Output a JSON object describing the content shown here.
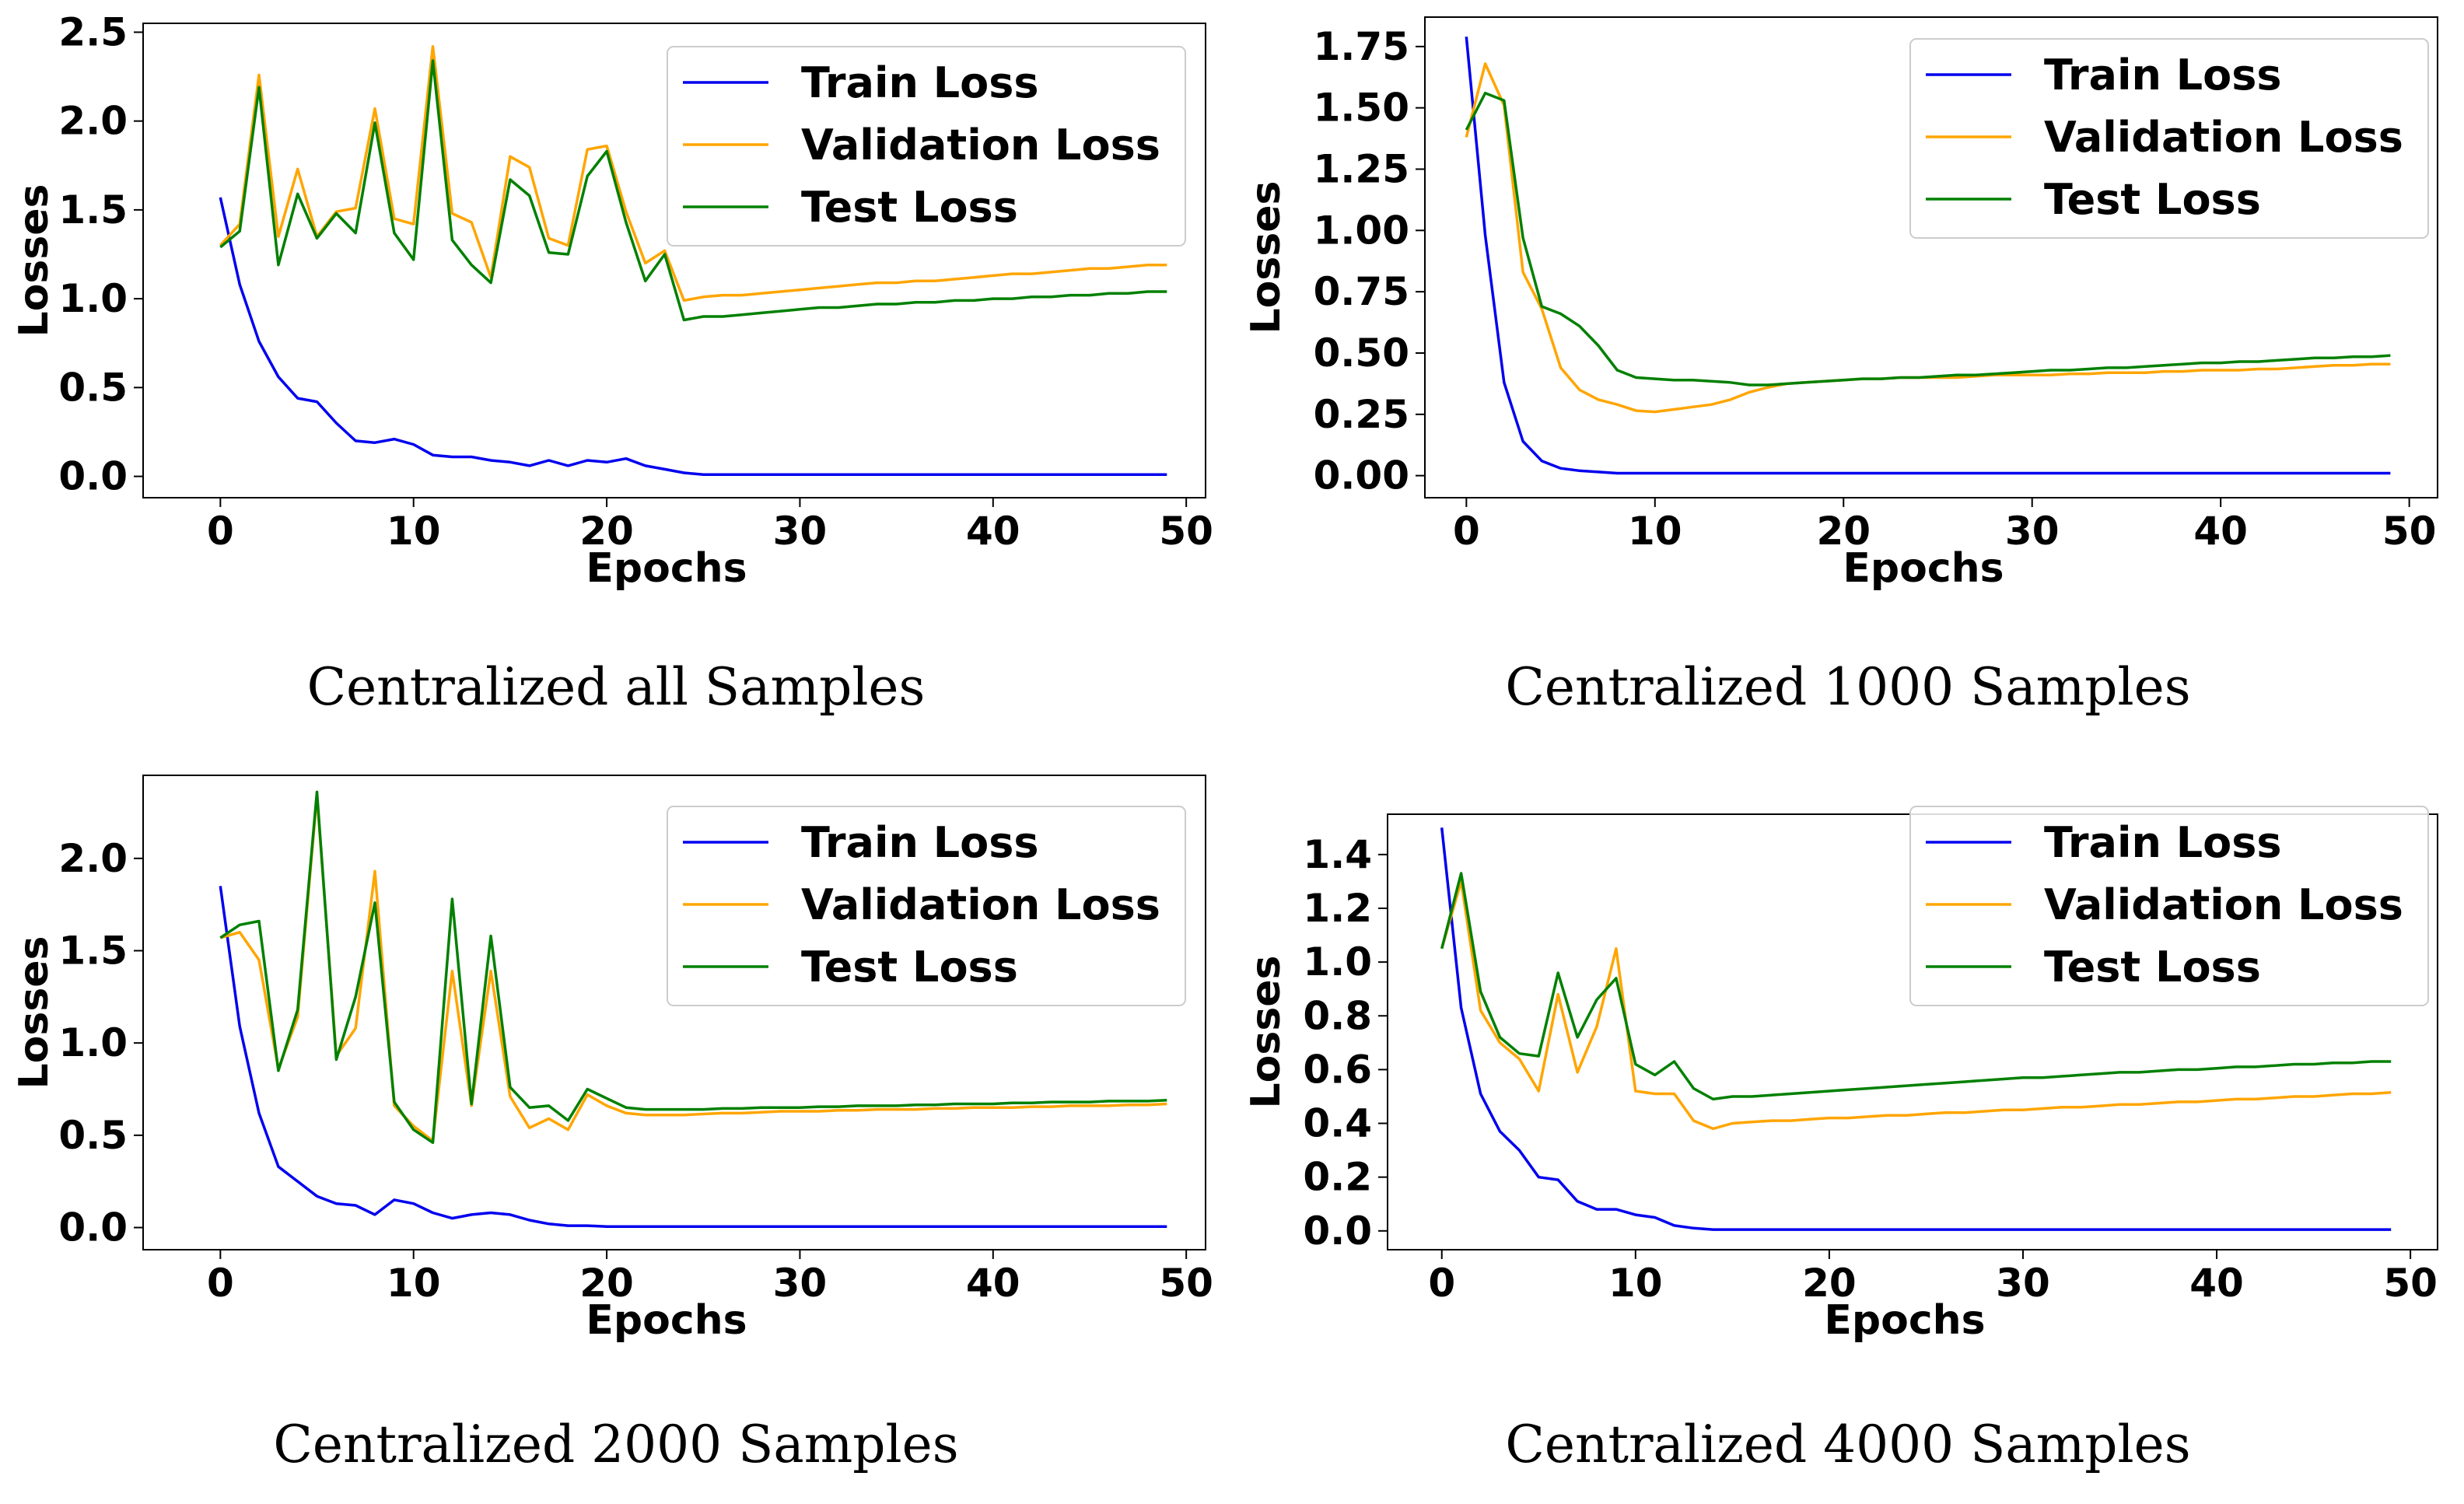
{
  "chart_data": [
    {
      "type": "line",
      "caption": "Centralized all Samples",
      "xlabel": "Epochs",
      "ylabel": "Losses",
      "xlim": [
        -4,
        51
      ],
      "ylim": [
        -0.12,
        2.55
      ],
      "xticks": [
        0,
        10,
        20,
        30,
        40,
        50
      ],
      "yticks": [
        0.0,
        0.5,
        1.0,
        1.5,
        2.0,
        2.5
      ],
      "ytick_labels": [
        "0.0",
        "0.5",
        "1.0",
        "1.5",
        "2.0",
        "2.5"
      ],
      "legend_position": "top-right",
      "x": [
        0,
        1,
        2,
        3,
        4,
        5,
        6,
        7,
        8,
        9,
        10,
        11,
        12,
        13,
        14,
        15,
        16,
        17,
        18,
        19,
        20,
        21,
        22,
        23,
        24,
        25,
        26,
        27,
        28,
        29,
        30,
        31,
        32,
        33,
        34,
        35,
        36,
        37,
        38,
        39,
        40,
        41,
        42,
        43,
        44,
        45,
        46,
        47,
        48,
        49
      ],
      "series": [
        {
          "name": "Train Loss",
          "color": "#0000ee",
          "values": [
            1.57,
            1.08,
            0.76,
            0.56,
            0.44,
            0.42,
            0.3,
            0.2,
            0.19,
            0.21,
            0.18,
            0.12,
            0.11,
            0.11,
            0.09,
            0.08,
            0.06,
            0.09,
            0.06,
            0.09,
            0.08,
            0.1,
            0.06,
            0.04,
            0.02,
            0.01,
            0.01,
            0.01,
            0.01,
            0.01,
            0.01,
            0.01,
            0.01,
            0.01,
            0.01,
            0.01,
            0.01,
            0.01,
            0.01,
            0.01,
            0.01,
            0.01,
            0.01,
            0.01,
            0.01,
            0.01,
            0.01,
            0.01,
            0.01,
            0.01
          ]
        },
        {
          "name": "Validation Loss",
          "color": "#ffa500",
          "values": [
            1.3,
            1.42,
            2.26,
            1.35,
            1.73,
            1.35,
            1.49,
            1.51,
            2.07,
            1.45,
            1.42,
            2.42,
            1.48,
            1.43,
            1.12,
            1.8,
            1.74,
            1.34,
            1.3,
            1.84,
            1.86,
            1.49,
            1.2,
            1.27,
            0.99,
            1.01,
            1.02,
            1.02,
            1.03,
            1.04,
            1.05,
            1.06,
            1.07,
            1.08,
            1.09,
            1.09,
            1.1,
            1.1,
            1.11,
            1.12,
            1.13,
            1.14,
            1.14,
            1.15,
            1.16,
            1.17,
            1.17,
            1.18,
            1.19,
            1.19
          ]
        },
        {
          "name": "Test Loss",
          "color": "#008000",
          "values": [
            1.29,
            1.38,
            2.19,
            1.19,
            1.59,
            1.34,
            1.48,
            1.37,
            1.99,
            1.37,
            1.22,
            2.34,
            1.33,
            1.19,
            1.09,
            1.67,
            1.58,
            1.26,
            1.25,
            1.69,
            1.83,
            1.43,
            1.1,
            1.25,
            0.88,
            0.9,
            0.9,
            0.91,
            0.92,
            0.93,
            0.94,
            0.95,
            0.95,
            0.96,
            0.97,
            0.97,
            0.98,
            0.98,
            0.99,
            0.99,
            1.0,
            1.0,
            1.01,
            1.01,
            1.02,
            1.02,
            1.03,
            1.03,
            1.04,
            1.04
          ]
        }
      ]
    },
    {
      "type": "line",
      "caption": "Centralized 1000 Samples",
      "xlabel": "Epochs",
      "ylabel": "Losses",
      "xlim": [
        -2.2,
        51.5
      ],
      "ylim": [
        -0.09,
        1.87
      ],
      "xticks": [
        0,
        10,
        20,
        30,
        40,
        50
      ],
      "yticks": [
        0.0,
        0.25,
        0.5,
        0.75,
        1.0,
        1.25,
        1.5,
        1.75
      ],
      "ytick_labels": [
        "0.00",
        "0.25",
        "0.50",
        "0.75",
        "1.00",
        "1.25",
        "1.50",
        "1.75"
      ],
      "legend_position": "top-right",
      "x": [
        0,
        1,
        2,
        3,
        4,
        5,
        6,
        7,
        8,
        9,
        10,
        11,
        12,
        13,
        14,
        15,
        16,
        17,
        18,
        19,
        20,
        21,
        22,
        23,
        24,
        25,
        26,
        27,
        28,
        29,
        30,
        31,
        32,
        33,
        34,
        35,
        36,
        37,
        38,
        39,
        40,
        41,
        42,
        43,
        44,
        45,
        46,
        47,
        48,
        49
      ],
      "series": [
        {
          "name": "Train Loss",
          "color": "#0000ee",
          "values": [
            1.79,
            0.98,
            0.38,
            0.14,
            0.06,
            0.03,
            0.02,
            0.015,
            0.01,
            0.01,
            0.01,
            0.01,
            0.01,
            0.01,
            0.01,
            0.01,
            0.01,
            0.01,
            0.01,
            0.01,
            0.01,
            0.01,
            0.01,
            0.01,
            0.01,
            0.01,
            0.01,
            0.01,
            0.01,
            0.01,
            0.01,
            0.01,
            0.01,
            0.01,
            0.01,
            0.01,
            0.01,
            0.01,
            0.01,
            0.01,
            0.01,
            0.01,
            0.01,
            0.01,
            0.01,
            0.01,
            0.01,
            0.01,
            0.01,
            0.01
          ]
        },
        {
          "name": "Validation Loss",
          "color": "#ffa500",
          "values": [
            1.38,
            1.68,
            1.51,
            0.83,
            0.68,
            0.44,
            0.35,
            0.31,
            0.29,
            0.265,
            0.26,
            0.27,
            0.28,
            0.29,
            0.31,
            0.34,
            0.36,
            0.375,
            0.38,
            0.385,
            0.39,
            0.395,
            0.395,
            0.4,
            0.4,
            0.4,
            0.4,
            0.405,
            0.41,
            0.41,
            0.41,
            0.41,
            0.415,
            0.415,
            0.42,
            0.42,
            0.42,
            0.425,
            0.425,
            0.43,
            0.43,
            0.43,
            0.435,
            0.435,
            0.44,
            0.445,
            0.45,
            0.45,
            0.455,
            0.455
          ]
        },
        {
          "name": "Test Loss",
          "color": "#008000",
          "values": [
            1.41,
            1.56,
            1.53,
            0.97,
            0.69,
            0.66,
            0.61,
            0.53,
            0.43,
            0.4,
            0.395,
            0.39,
            0.39,
            0.385,
            0.38,
            0.37,
            0.37,
            0.375,
            0.38,
            0.385,
            0.39,
            0.395,
            0.395,
            0.4,
            0.4,
            0.405,
            0.41,
            0.41,
            0.415,
            0.42,
            0.425,
            0.43,
            0.43,
            0.435,
            0.44,
            0.44,
            0.445,
            0.45,
            0.455,
            0.46,
            0.46,
            0.465,
            0.465,
            0.47,
            0.475,
            0.48,
            0.48,
            0.485,
            0.485,
            0.49
          ]
        }
      ]
    },
    {
      "type": "line",
      "caption": "Centralized 2000 Samples",
      "xlabel": "Epochs",
      "ylabel": "Losses",
      "xlim": [
        -4,
        51
      ],
      "ylim": [
        -0.12,
        2.45
      ],
      "xticks": [
        0,
        10,
        20,
        30,
        40,
        50
      ],
      "yticks": [
        0.0,
        0.5,
        1.0,
        1.5,
        2.0
      ],
      "ytick_labels": [
        "0.0",
        "0.5",
        "1.0",
        "1.5",
        "2.0"
      ],
      "legend_position": "top-right",
      "x": [
        0,
        1,
        2,
        3,
        4,
        5,
        6,
        7,
        8,
        9,
        10,
        11,
        12,
        13,
        14,
        15,
        16,
        17,
        18,
        19,
        20,
        21,
        22,
        23,
        24,
        25,
        26,
        27,
        28,
        29,
        30,
        31,
        32,
        33,
        34,
        35,
        36,
        37,
        38,
        39,
        40,
        41,
        42,
        43,
        44,
        45,
        46,
        47,
        48,
        49
      ],
      "series": [
        {
          "name": "Train Loss",
          "color": "#0000ee",
          "values": [
            1.85,
            1.09,
            0.62,
            0.33,
            0.25,
            0.17,
            0.13,
            0.12,
            0.07,
            0.15,
            0.13,
            0.08,
            0.05,
            0.07,
            0.08,
            0.07,
            0.04,
            0.02,
            0.01,
            0.01,
            0.005,
            0.005,
            0.005,
            0.005,
            0.005,
            0.005,
            0.005,
            0.005,
            0.005,
            0.005,
            0.005,
            0.005,
            0.005,
            0.005,
            0.005,
            0.005,
            0.005,
            0.005,
            0.005,
            0.005,
            0.005,
            0.005,
            0.005,
            0.005,
            0.005,
            0.005,
            0.005,
            0.005,
            0.005,
            0.005
          ]
        },
        {
          "name": "Validation Loss",
          "color": "#ffa500",
          "values": [
            1.57,
            1.6,
            1.45,
            0.86,
            1.14,
            2.34,
            0.93,
            1.08,
            1.93,
            0.66,
            0.55,
            0.47,
            1.39,
            0.66,
            1.39,
            0.71,
            0.54,
            0.59,
            0.53,
            0.72,
            0.66,
            0.62,
            0.61,
            0.61,
            0.61,
            0.615,
            0.62,
            0.62,
            0.625,
            0.63,
            0.63,
            0.63,
            0.635,
            0.635,
            0.64,
            0.64,
            0.64,
            0.645,
            0.645,
            0.65,
            0.65,
            0.65,
            0.655,
            0.655,
            0.66,
            0.66,
            0.66,
            0.665,
            0.665,
            0.67
          ]
        },
        {
          "name": "Test Loss",
          "color": "#008000",
          "values": [
            1.57,
            1.64,
            1.66,
            0.85,
            1.18,
            2.36,
            0.91,
            1.25,
            1.76,
            0.68,
            0.53,
            0.46,
            1.78,
            0.67,
            1.58,
            0.76,
            0.65,
            0.66,
            0.58,
            0.75,
            0.7,
            0.65,
            0.64,
            0.64,
            0.64,
            0.64,
            0.645,
            0.645,
            0.65,
            0.65,
            0.65,
            0.655,
            0.655,
            0.66,
            0.66,
            0.66,
            0.665,
            0.665,
            0.67,
            0.67,
            0.67,
            0.675,
            0.675,
            0.68,
            0.68,
            0.68,
            0.685,
            0.685,
            0.685,
            0.69
          ]
        }
      ]
    },
    {
      "type": "line",
      "caption": "Centralized 4000 Samples",
      "xlabel": "Epochs",
      "ylabel": "Losses",
      "xlim": [
        -2.8,
        51.4
      ],
      "ylim": [
        -0.07,
        1.55
      ],
      "xticks": [
        0,
        10,
        20,
        30,
        40,
        50
      ],
      "yticks": [
        0.0,
        0.2,
        0.4,
        0.6,
        0.8,
        1.0,
        1.2,
        1.4
      ],
      "ytick_labels": [
        "0.0",
        "0.2",
        "0.4",
        "0.6",
        "0.8",
        "1.0",
        "1.2",
        "1.4"
      ],
      "legend_position": "top-right",
      "x": [
        0,
        1,
        2,
        3,
        4,
        5,
        6,
        7,
        8,
        9,
        10,
        11,
        12,
        13,
        14,
        15,
        16,
        17,
        18,
        19,
        20,
        21,
        22,
        23,
        24,
        25,
        26,
        27,
        28,
        29,
        30,
        31,
        32,
        33,
        34,
        35,
        36,
        37,
        38,
        39,
        40,
        41,
        42,
        43,
        44,
        45,
        46,
        47,
        48,
        49
      ],
      "series": [
        {
          "name": "Train Loss",
          "color": "#0000ee",
          "values": [
            1.5,
            0.83,
            0.51,
            0.37,
            0.3,
            0.2,
            0.19,
            0.11,
            0.08,
            0.08,
            0.06,
            0.05,
            0.02,
            0.01,
            0.005,
            0.005,
            0.005,
            0.005,
            0.005,
            0.005,
            0.005,
            0.005,
            0.005,
            0.005,
            0.005,
            0.005,
            0.005,
            0.005,
            0.005,
            0.005,
            0.005,
            0.005,
            0.005,
            0.005,
            0.005,
            0.005,
            0.005,
            0.005,
            0.005,
            0.005,
            0.005,
            0.005,
            0.005,
            0.005,
            0.005,
            0.005,
            0.005,
            0.005,
            0.005,
            0.005
          ]
        },
        {
          "name": "Validation Loss",
          "color": "#ffa500",
          "values": [
            1.05,
            1.3,
            0.82,
            0.7,
            0.64,
            0.52,
            0.88,
            0.59,
            0.76,
            1.05,
            0.52,
            0.51,
            0.51,
            0.41,
            0.38,
            0.4,
            0.405,
            0.41,
            0.41,
            0.415,
            0.42,
            0.42,
            0.425,
            0.43,
            0.43,
            0.435,
            0.44,
            0.44,
            0.445,
            0.45,
            0.45,
            0.455,
            0.46,
            0.46,
            0.465,
            0.47,
            0.47,
            0.475,
            0.48,
            0.48,
            0.485,
            0.49,
            0.49,
            0.495,
            0.5,
            0.5,
            0.505,
            0.51,
            0.51,
            0.515
          ]
        },
        {
          "name": "Test Loss",
          "color": "#008000",
          "values": [
            1.05,
            1.33,
            0.89,
            0.72,
            0.66,
            0.65,
            0.96,
            0.72,
            0.86,
            0.94,
            0.62,
            0.58,
            0.63,
            0.53,
            0.49,
            0.5,
            0.5,
            0.505,
            0.51,
            0.515,
            0.52,
            0.525,
            0.53,
            0.535,
            0.54,
            0.545,
            0.55,
            0.555,
            0.56,
            0.565,
            0.57,
            0.57,
            0.575,
            0.58,
            0.585,
            0.59,
            0.59,
            0.595,
            0.6,
            0.6,
            0.605,
            0.61,
            0.61,
            0.615,
            0.62,
            0.62,
            0.625,
            0.625,
            0.63,
            0.63
          ]
        }
      ]
    }
  ]
}
